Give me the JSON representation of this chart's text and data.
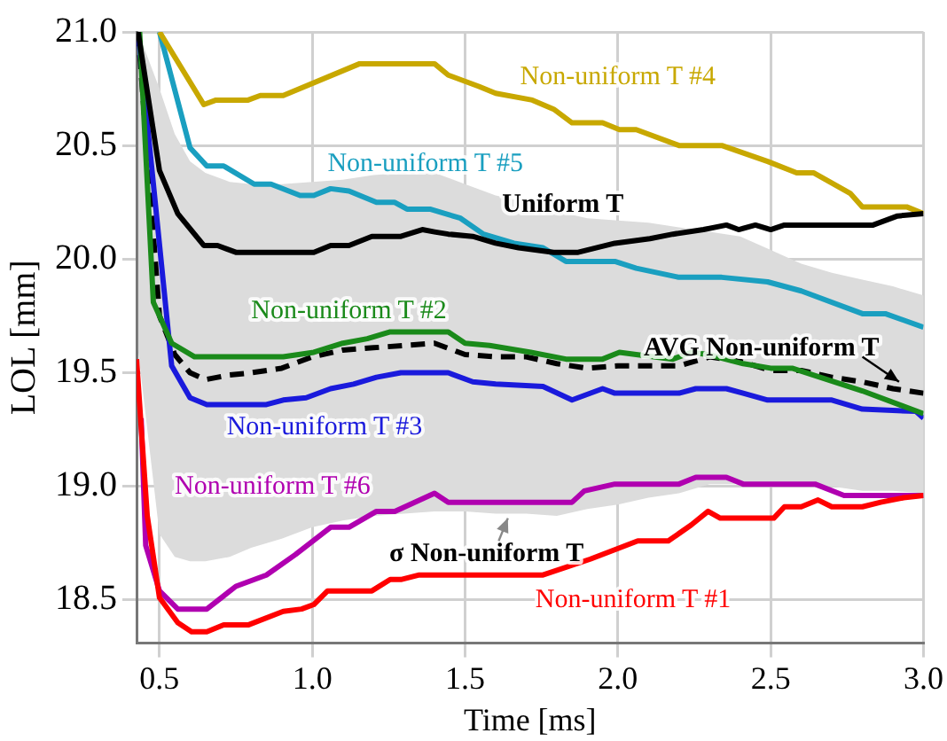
{
  "chart_data": {
    "type": "line",
    "xlabel": "Time [ms]",
    "ylabel": "LOL [mm]",
    "xlim": [
      0.425,
      3.0
    ],
    "ylim": [
      18.31,
      21.0
    ],
    "xticks": [
      0.5,
      {
        "value": 1,
        "label": "1.0"
      },
      1.5,
      {
        "value": 2,
        "label": "2.0"
      },
      2.5,
      {
        "value": 3,
        "label": "3.0"
      }
    ],
    "yticks": [
      18.5,
      {
        "value": 19,
        "label": "19.0"
      },
      19.5,
      {
        "value": 20,
        "label": "20.0"
      },
      20.5,
      {
        "value": 21,
        "label": "21.0"
      }
    ],
    "grid": true,
    "legend": false,
    "marker": "none",
    "annotations": [
      "σ Non-uniform T"
    ],
    "series": [
      {
        "name": "Uniform T",
        "color": "#000000",
        "x": [
          0.43,
          0.5,
          0.56,
          0.645,
          0.69,
          0.75,
          1.005,
          1.06,
          1.12,
          1.195,
          1.29,
          1.36,
          1.4,
          1.445,
          1.525,
          1.6,
          1.675,
          1.79,
          1.87,
          1.99,
          2.105,
          2.18,
          2.28,
          2.355,
          2.395,
          2.45,
          2.5,
          2.545,
          2.835,
          2.915,
          3.0
        ],
        "values": [
          21.0,
          20.39,
          20.2,
          20.06,
          20.06,
          20.03,
          20.03,
          20.06,
          20.06,
          20.1,
          20.1,
          20.13,
          20.12,
          20.11,
          20.1,
          20.07,
          20.05,
          20.03,
          20.03,
          20.07,
          20.09,
          20.11,
          20.13,
          20.15,
          20.13,
          20.15,
          20.13,
          20.15,
          20.15,
          20.19,
          20.2
        ]
      },
      {
        "name": "Non-uniform T #1",
        "color": "#ff0000",
        "x": [
          0.425,
          0.46,
          0.5,
          0.56,
          0.605,
          0.655,
          0.71,
          0.79,
          0.905,
          0.965,
          1.005,
          1.05,
          1.195,
          1.255,
          1.29,
          1.35,
          1.755,
          1.91,
          2.065,
          2.165,
          2.24,
          2.295,
          2.335,
          2.51,
          2.545,
          2.6,
          2.655,
          2.7,
          2.8,
          2.86,
          2.935,
          3.0
        ],
        "values": [
          19.56,
          18.87,
          18.51,
          18.4,
          18.36,
          18.36,
          18.39,
          18.39,
          18.45,
          18.46,
          18.48,
          18.54,
          18.54,
          18.59,
          18.59,
          18.61,
          18.61,
          18.68,
          18.76,
          18.76,
          18.83,
          18.89,
          18.86,
          18.86,
          18.91,
          18.91,
          18.94,
          18.91,
          18.91,
          18.93,
          18.95,
          18.96
        ]
      },
      {
        "name": "Non-uniform T #2",
        "color": "#1a8a1a",
        "x": [
          0.435,
          0.48,
          0.54,
          0.615,
          0.905,
          1.005,
          1.1,
          1.18,
          1.255,
          1.445,
          1.5,
          1.58,
          1.715,
          1.83,
          1.95,
          2.005,
          2.06,
          2.18,
          2.24,
          2.295,
          2.41,
          2.5,
          2.57,
          2.8,
          3.0
        ],
        "values": [
          21.0,
          19.81,
          19.63,
          19.57,
          19.57,
          19.59,
          19.63,
          19.65,
          19.68,
          19.68,
          19.63,
          19.62,
          19.59,
          19.56,
          19.56,
          19.59,
          19.58,
          19.56,
          19.59,
          19.58,
          19.54,
          19.52,
          19.52,
          19.42,
          19.32
        ]
      },
      {
        "name": "Non-uniform T #3",
        "color": "#1a1adc",
        "x": [
          0.43,
          0.54,
          0.6,
          0.655,
          0.85,
          0.905,
          0.98,
          1.06,
          1.135,
          1.21,
          1.29,
          1.445,
          1.525,
          1.6,
          1.755,
          1.85,
          1.95,
          1.99,
          2.2,
          2.255,
          2.355,
          2.41,
          2.49,
          2.7,
          2.8,
          2.975,
          3.0
        ],
        "values": [
          21.0,
          19.53,
          19.39,
          19.36,
          19.36,
          19.38,
          19.39,
          19.43,
          19.45,
          19.48,
          19.5,
          19.5,
          19.46,
          19.45,
          19.44,
          19.38,
          19.43,
          19.41,
          19.41,
          19.43,
          19.43,
          19.41,
          19.38,
          19.38,
          19.34,
          19.33,
          19.3
        ]
      },
      {
        "name": "Non-uniform T #4",
        "color": "#c8a800",
        "x": [
          0.5,
          0.645,
          0.685,
          0.79,
          0.83,
          0.905,
          1.155,
          1.4,
          1.445,
          1.545,
          1.6,
          1.72,
          1.79,
          1.85,
          1.95,
          2.005,
          2.06,
          2.2,
          2.34,
          2.49,
          2.585,
          2.64,
          2.76,
          2.8,
          2.945,
          3.0
        ],
        "values": [
          21.0,
          20.68,
          20.7,
          20.7,
          20.72,
          20.72,
          20.86,
          20.86,
          20.81,
          20.76,
          20.73,
          20.7,
          20.66,
          20.6,
          20.6,
          20.57,
          20.57,
          20.5,
          20.5,
          20.43,
          20.38,
          20.38,
          20.29,
          20.23,
          20.23,
          20.2
        ]
      },
      {
        "name": "Non-uniform T #5",
        "color": "#1a9fc0",
        "x": [
          0.5,
          0.6,
          0.655,
          0.71,
          0.81,
          0.865,
          0.96,
          1.005,
          1.06,
          1.12,
          1.21,
          1.27,
          1.31,
          1.385,
          1.485,
          1.56,
          1.66,
          1.755,
          1.83,
          1.99,
          2.06,
          2.2,
          2.34,
          2.49,
          2.6,
          2.8,
          2.875,
          3.0
        ],
        "values": [
          21.0,
          20.49,
          20.41,
          20.41,
          20.33,
          20.33,
          20.28,
          20.28,
          20.31,
          20.3,
          20.25,
          20.25,
          20.22,
          20.22,
          20.18,
          20.11,
          20.07,
          20.05,
          19.99,
          19.99,
          19.96,
          19.92,
          19.92,
          19.9,
          19.86,
          19.76,
          19.76,
          19.7
        ]
      },
      {
        "name": "Non-uniform T #6",
        "color": "#b000b0",
        "x": [
          0.44,
          0.455,
          0.5,
          0.56,
          0.655,
          0.75,
          0.85,
          0.945,
          1.06,
          1.12,
          1.21,
          1.27,
          1.4,
          1.445,
          1.85,
          1.89,
          1.99,
          2.2,
          2.255,
          2.355,
          2.41,
          2.645,
          2.74,
          3.0
        ],
        "values": [
          19.3,
          18.74,
          18.54,
          18.46,
          18.46,
          18.56,
          18.61,
          18.7,
          18.82,
          18.82,
          18.89,
          18.89,
          18.97,
          18.93,
          18.93,
          18.98,
          19.01,
          19.01,
          19.04,
          19.04,
          19.01,
          19.01,
          18.96,
          18.96
        ]
      },
      {
        "name": "AVG Non-uniform T",
        "color": "#000000",
        "line_style": "dashed",
        "x": [
          0.43,
          0.5,
          0.55,
          0.6,
          0.65,
          0.73,
          0.8,
          0.9,
          1.0,
          1.1,
          1.2,
          1.3,
          1.4,
          1.5,
          1.6,
          1.7,
          1.8,
          1.9,
          2.0,
          2.1,
          2.2,
          2.3,
          2.4,
          2.5,
          2.6,
          2.7,
          2.8,
          2.9,
          3.0
        ],
        "values": [
          21.0,
          19.75,
          19.58,
          19.5,
          19.47,
          19.49,
          19.5,
          19.52,
          19.57,
          19.6,
          19.61,
          19.62,
          19.63,
          19.58,
          19.57,
          19.57,
          19.54,
          19.52,
          19.53,
          19.53,
          19.53,
          19.57,
          19.55,
          19.51,
          19.51,
          19.48,
          19.46,
          19.43,
          19.41
        ],
        "upper": [
          21.0,
          20.75,
          20.55,
          20.43,
          20.38,
          20.34,
          20.33,
          20.33,
          20.34,
          20.35,
          20.37,
          20.38,
          20.38,
          20.33,
          20.28,
          20.25,
          20.21,
          20.18,
          20.17,
          20.16,
          20.14,
          20.12,
          20.1,
          20.04,
          19.98,
          19.94,
          19.91,
          19.88,
          19.84
        ],
        "lower": [
          19.6,
          18.79,
          18.69,
          18.67,
          18.67,
          18.69,
          18.73,
          18.77,
          18.82,
          18.85,
          18.87,
          18.88,
          18.89,
          18.89,
          18.88,
          18.88,
          18.87,
          18.9,
          18.92,
          18.95,
          18.97,
          19.01,
          19.01,
          19.01,
          19.01,
          19.0,
          18.98,
          18.98,
          18.97
        ]
      }
    ]
  }
}
